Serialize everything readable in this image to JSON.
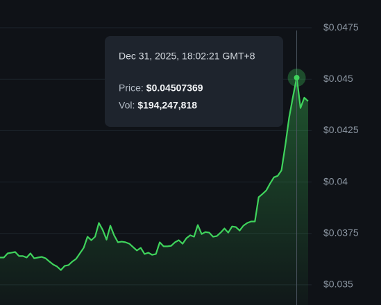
{
  "chart_data": {
    "type": "line",
    "series": [
      {
        "name": "Price",
        "color": "#3fd35c",
        "values": [
          0.03633,
          0.03633,
          0.03653,
          0.03656,
          0.0366,
          0.0364,
          0.0364,
          0.03633,
          0.03653,
          0.03629,
          0.03633,
          0.03636,
          0.03629,
          0.03613,
          0.03599,
          0.03589,
          0.03572,
          0.03592,
          0.03596,
          0.03613,
          0.03626,
          0.03653,
          0.0368,
          0.03734,
          0.03717,
          0.03734,
          0.03801,
          0.03767,
          0.0372,
          0.03788,
          0.03741,
          0.03707,
          0.0371,
          0.03707,
          0.037,
          0.03683,
          0.03667,
          0.0368,
          0.0365,
          0.03656,
          0.03646,
          0.0365,
          0.03707,
          0.03687,
          0.03687,
          0.0369,
          0.03707,
          0.03717,
          0.037,
          0.03727,
          0.03741,
          0.03734,
          0.03791,
          0.03747,
          0.03757,
          0.03754,
          0.03734,
          0.03737,
          0.03754,
          0.03774,
          0.03754,
          0.03784,
          0.03781,
          0.03764,
          0.03788,
          0.03801,
          0.03808,
          0.03808,
          0.03926,
          0.03942,
          0.03959,
          0.03993,
          0.04023,
          0.0403,
          0.04057,
          0.04178,
          0.04313,
          0.04414,
          0.04507369,
          0.0436,
          0.0441,
          0.04393
        ]
      }
    ],
    "ylim": [
      0.03402,
      0.04885
    ],
    "yticks": [
      {
        "value": 0.035,
        "label": "$0.035"
      },
      {
        "value": 0.0375,
        "label": "$0.0375"
      },
      {
        "value": 0.04,
        "label": "$0.04"
      },
      {
        "value": 0.0425,
        "label": "$0.0425"
      },
      {
        "value": 0.045,
        "label": "$0.045"
      },
      {
        "value": 0.0475,
        "label": "$0.0475"
      }
    ],
    "grid": true,
    "tooltip": {
      "date": "Dec 31, 2025, 18:02:21 GMT+8",
      "price_label": "Price:",
      "price": "$0.04507369",
      "vol_label": "Vol:",
      "vol": "$194,247,818"
    }
  }
}
